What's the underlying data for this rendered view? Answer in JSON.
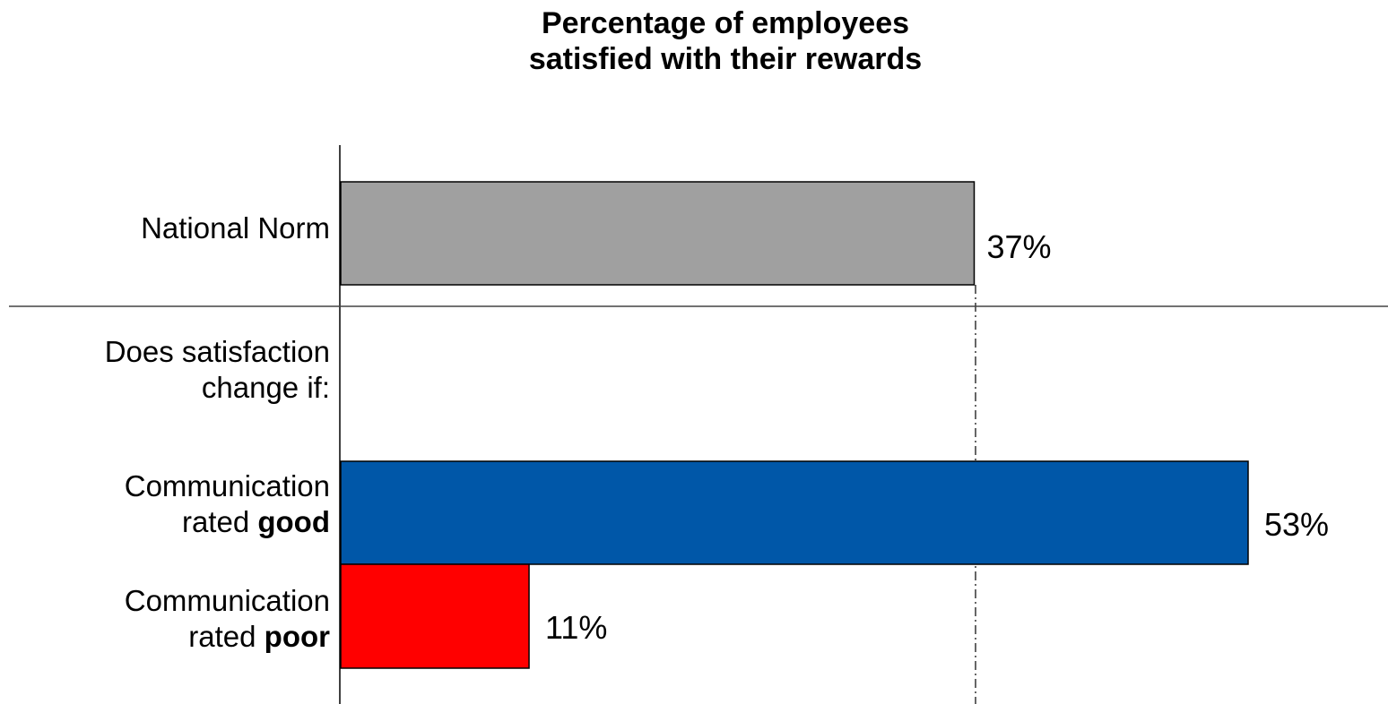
{
  "chart_data": {
    "type": "bar",
    "orientation": "horizontal",
    "title": "Percentage of employees satisfied with their rewards",
    "title_lines": [
      "Percentage of employees",
      "satisfied with their rewards"
    ],
    "section_label": [
      "Does satisfaction",
      "change if:"
    ],
    "categories": [
      {
        "line1": "National Norm",
        "line2_prefix": "",
        "line2_bold": ""
      },
      {
        "line1": "Communication",
        "line2_prefix": "rated ",
        "line2_bold": "good"
      },
      {
        "line1": "Communication",
        "line2_prefix": "rated ",
        "line2_bold": "poor"
      }
    ],
    "values": [
      37,
      53,
      11
    ],
    "value_labels": [
      "37%",
      "53%",
      "11%"
    ],
    "colors": [
      "#a0a0a0",
      "#0057a8",
      "#ff0000"
    ],
    "reference_line": {
      "value": 37,
      "style": "dash-dot"
    },
    "xlim": [
      0,
      53
    ],
    "grid": false,
    "legend": "none"
  }
}
